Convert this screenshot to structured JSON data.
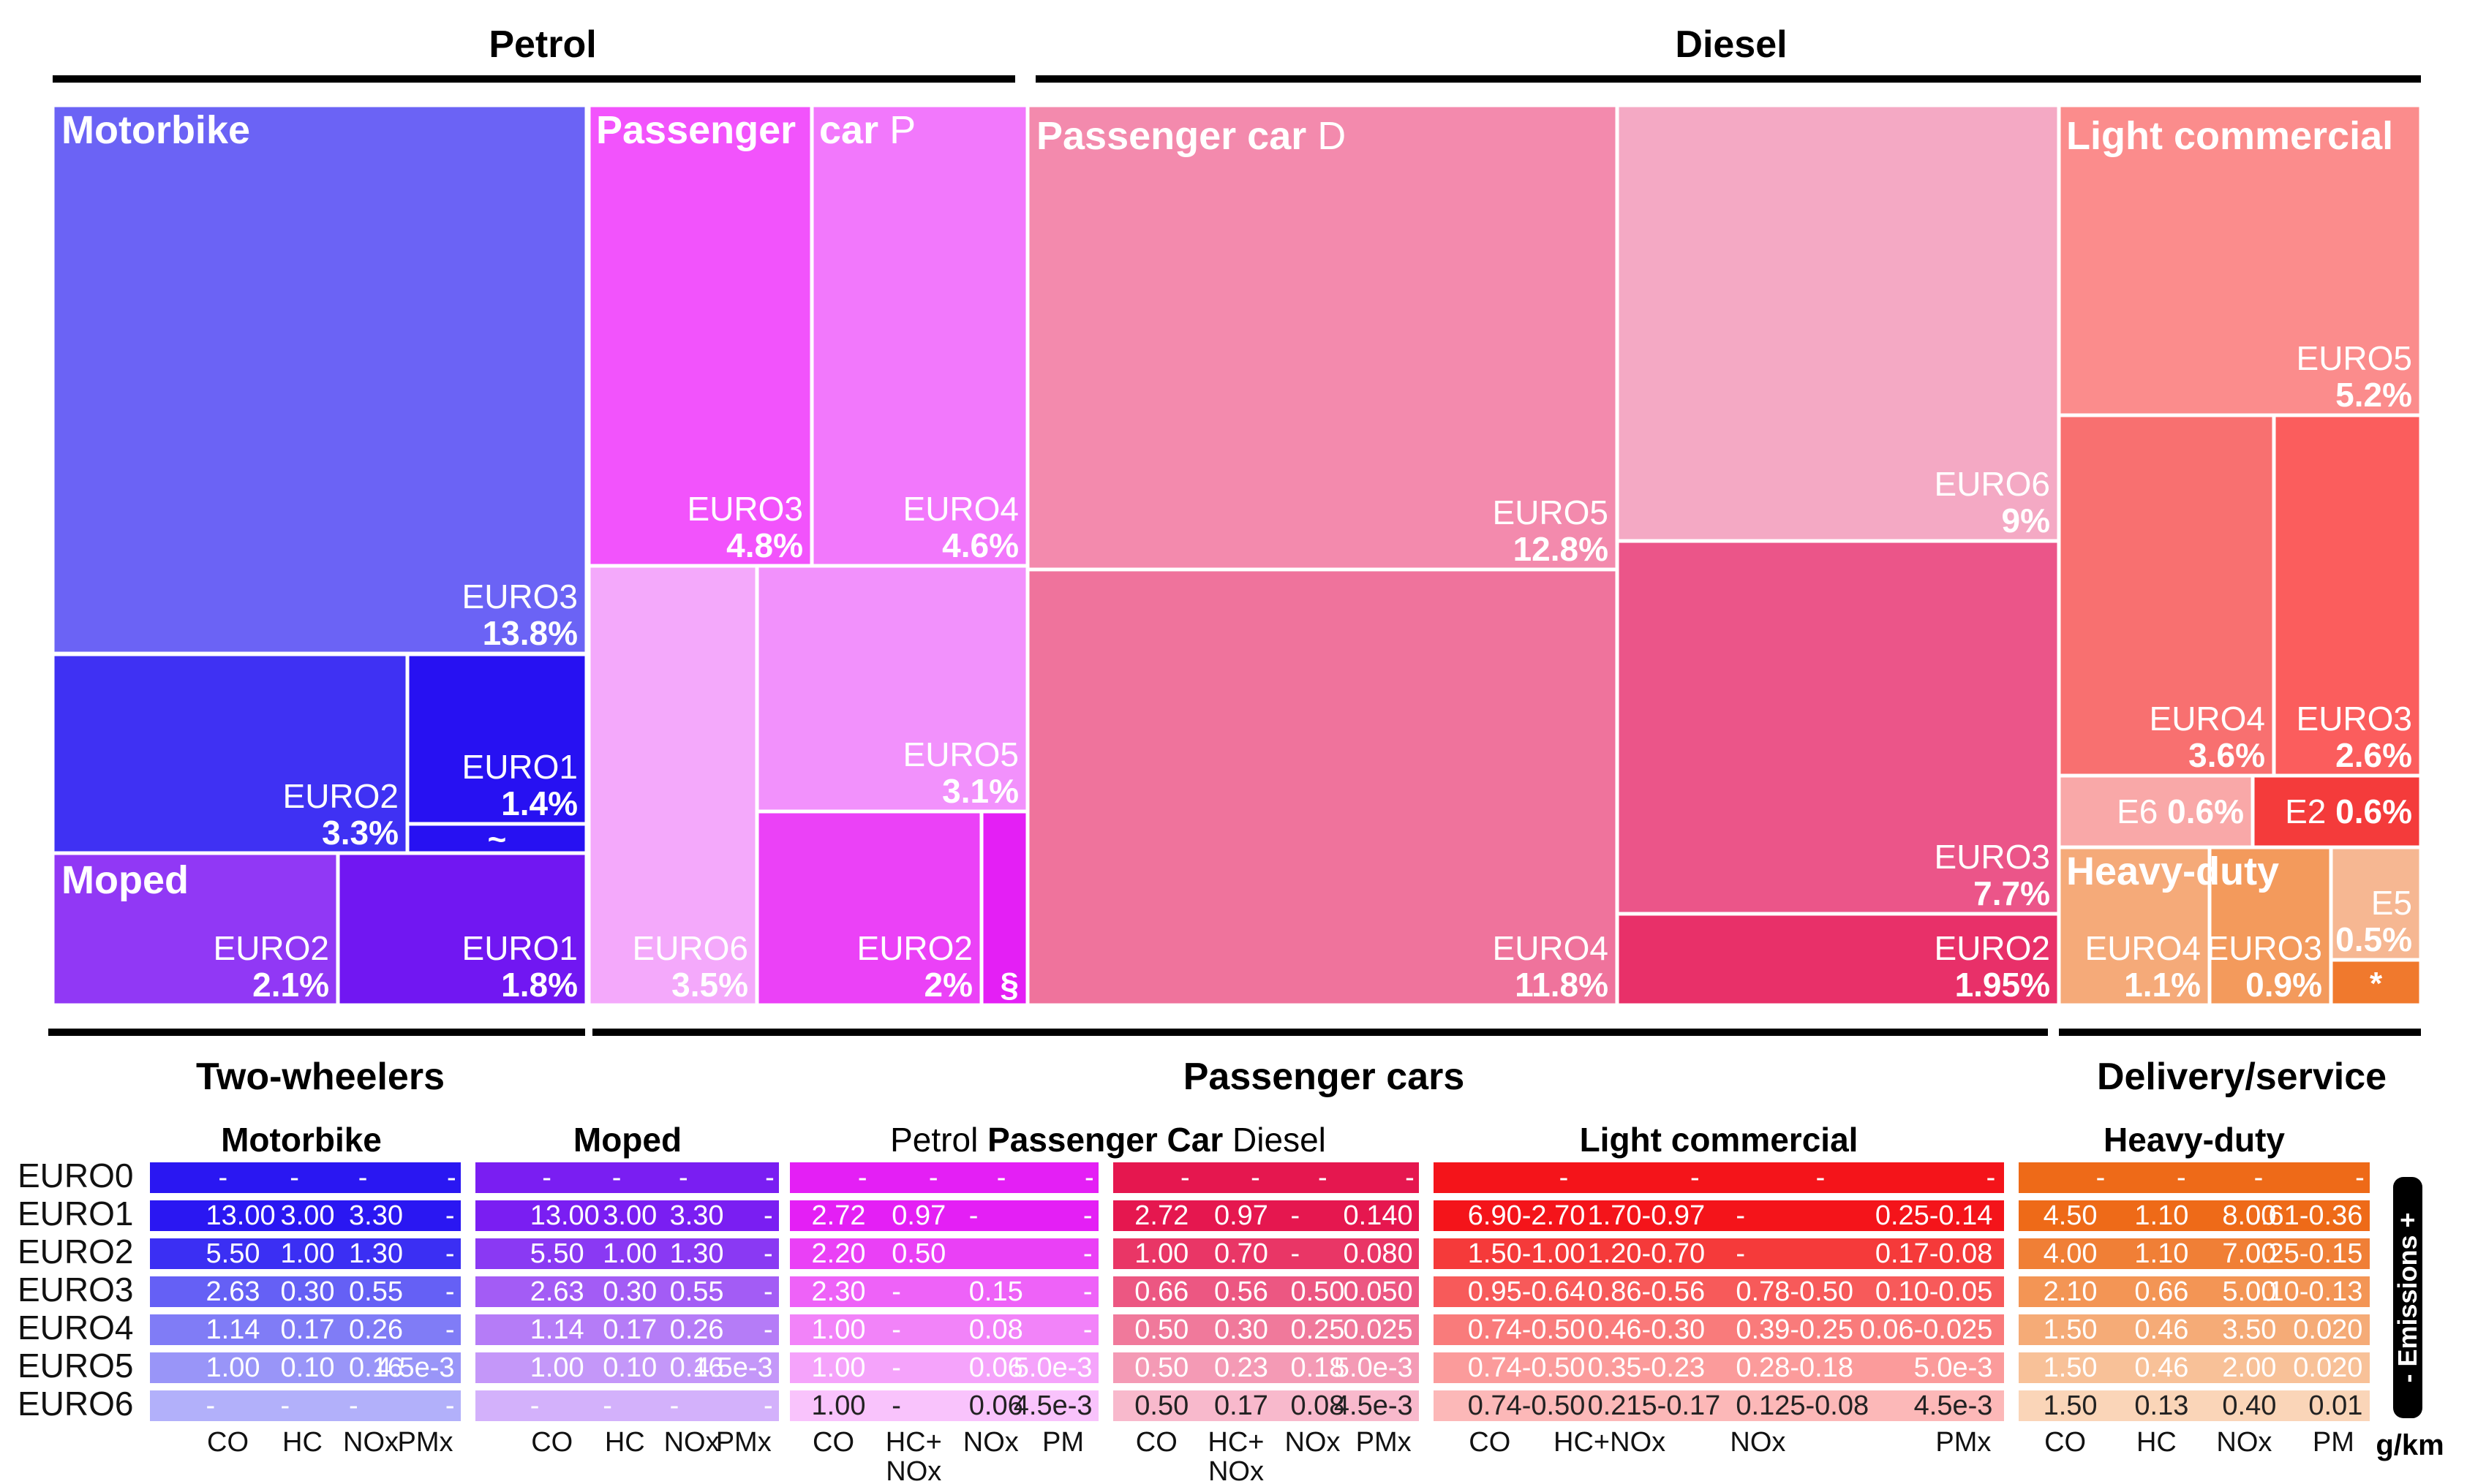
{
  "title": "",
  "chart_data": [
    {
      "type": "treemap",
      "title": "",
      "groups": [
        {
          "name": "Petrol"
        },
        {
          "name": "Diesel"
        }
      ],
      "categories": [
        {
          "name": "Two-wheelers"
        },
        {
          "name": "Passenger cars"
        },
        {
          "name": "Delivery/service"
        }
      ],
      "tiles": [
        {
          "vehicle": "Motorbike",
          "label": "EURO3",
          "value": "13.8%",
          "color": "#6b63f5"
        },
        {
          "vehicle": "Motorbike",
          "label": "EURO2",
          "value": "3.3%",
          "color": "#3f31f3"
        },
        {
          "vehicle": "Motorbike",
          "label": "EURO1",
          "value": "1.4%",
          "color": "#2711f2"
        },
        {
          "vehicle": "Motorbike",
          "label": "",
          "value": "~",
          "color": "#2711f2"
        },
        {
          "vehicle": "Moped",
          "label": "EURO2",
          "value": "2.1%",
          "color": "#9138f5"
        },
        {
          "vehicle": "Moped",
          "label": "EURO1",
          "value": "1.8%",
          "color": "#7117f2"
        },
        {
          "vehicle": "Passenger car P",
          "label": "EURO3",
          "value": "4.8%",
          "color": "#f253fc"
        },
        {
          "vehicle": "Passenger car P",
          "label": "EURO4",
          "value": "4.6%",
          "color": "#f278fc"
        },
        {
          "vehicle": "Passenger car P",
          "label": "EURO6",
          "value": "3.5%",
          "color": "#f4a9fb"
        },
        {
          "vehicle": "Passenger car P",
          "label": "EURO5",
          "value": "3.1%",
          "color": "#f291fc"
        },
        {
          "vehicle": "Passenger car P",
          "label": "EURO2",
          "value": "2%",
          "color": "#eb41f7"
        },
        {
          "vehicle": "Passenger car P",
          "label": "",
          "value": "§",
          "color": "#e41ff5"
        },
        {
          "vehicle": "Passenger car D",
          "label": "EURO5",
          "value": "12.8%",
          "color": "#f38aad"
        },
        {
          "vehicle": "Passenger car D",
          "label": "EURO4",
          "value": "11.8%",
          "color": "#ef739c"
        },
        {
          "vehicle": "Passenger car D",
          "label": "EURO6",
          "value": "9%",
          "color": "#f4a9c4"
        },
        {
          "vehicle": "Passenger car D",
          "label": "EURO3",
          "value": "7.7%",
          "color": "#eb5589"
        },
        {
          "vehicle": "Passenger car D",
          "label": "EURO2",
          "value": "1.95%",
          "color": "#e83069"
        },
        {
          "vehicle": "Light commercial",
          "label": "EURO5",
          "value": "5.2%",
          "color": "#fb8c8c"
        },
        {
          "vehicle": "Light commercial",
          "label": "EURO4",
          "value": "3.6%",
          "color": "#f87070"
        },
        {
          "vehicle": "Light commercial",
          "label": "EURO3",
          "value": "2.6%",
          "color": "#fb5d5d"
        },
        {
          "vehicle": "Light commercial",
          "label": "E6",
          "value": "0.6%",
          "color": "#f9a8a8"
        },
        {
          "vehicle": "Light commercial",
          "label": "E2",
          "value": "0.6%",
          "color": "#f43b3b"
        },
        {
          "vehicle": "Heavy-duty",
          "label": "EURO4",
          "value": "1.1%",
          "color": "#f5aa79"
        },
        {
          "vehicle": "Heavy-duty",
          "label": "EURO3",
          "value": "0.9%",
          "color": "#f39a5c"
        },
        {
          "vehicle": "Heavy-duty",
          "label": "E5",
          "value": "0.5%",
          "color": "#f6b792"
        },
        {
          "vehicle": "Heavy-duty",
          "label": "",
          "value": "*",
          "color": "#f0792d"
        }
      ],
      "vehicle_labels": [
        {
          "bold": "Motorbike",
          "light": ""
        },
        {
          "bold": "Moped",
          "light": ""
        },
        {
          "bold": "Passenger",
          "light": ""
        },
        {
          "bold": "car",
          "light": " P"
        },
        {
          "bold": "Passenger car",
          "light": " D"
        },
        {
          "bold": "Light commercial",
          "light": ""
        },
        {
          "bold": "Heavy-duty",
          "light": ""
        }
      ]
    },
    {
      "type": "table",
      "unit": "g/km",
      "legend": "- Emissions +",
      "rows": [
        "EURO0",
        "EURO1",
        "EURO2",
        "EURO3",
        "EURO4",
        "EURO5",
        "EURO6"
      ],
      "blocks": [
        {
          "title": "Motorbike",
          "title_prefix": "",
          "title_suffix": "",
          "columns": [
            "CO",
            "HC",
            "NOx",
            "PMx"
          ],
          "colors": [
            "#2a17f2",
            "#2a17f2",
            "#3b2ff3",
            "#6560f5",
            "#807cf6",
            "#9995f8",
            "#b2b0fa"
          ],
          "text_colors": [
            "#ffffff",
            "#ffffff",
            "#ffffff",
            "#ffffff",
            "#ffffff",
            "#ffffff",
            "#ffffff"
          ],
          "cells": [
            [
              "-",
              "-",
              "-",
              "-"
            ],
            [
              "13.00",
              "3.00",
              "3.30",
              "-"
            ],
            [
              "5.50",
              "1.00",
              "1.30",
              "-"
            ],
            [
              "2.63",
              "0.30",
              "0.55",
              "-"
            ],
            [
              "1.14",
              "0.17",
              "0.26",
              "-"
            ],
            [
              "1.00",
              "0.10",
              "0.16",
              "4.5e-3"
            ],
            [
              "-",
              "-",
              "-",
              "-"
            ]
          ]
        },
        {
          "title": "Moped",
          "title_prefix": "",
          "title_suffix": "",
          "columns": [
            "CO",
            "HC",
            "NOx",
            "PMx"
          ],
          "colors": [
            "#7a1ef2",
            "#7a1ef2",
            "#8a39f3",
            "#a35cf5",
            "#b57cf7",
            "#c497f9",
            "#d3b1fb"
          ],
          "text_colors": [
            "#ffffff",
            "#ffffff",
            "#ffffff",
            "#ffffff",
            "#ffffff",
            "#ffffff",
            "#ffffff"
          ],
          "cells": [
            [
              "-",
              "-",
              "-",
              "-"
            ],
            [
              "13.00",
              "3.00",
              "3.30",
              "-"
            ],
            [
              "5.50",
              "1.00",
              "1.30",
              "-"
            ],
            [
              "2.63",
              "0.30",
              "0.55",
              "-"
            ],
            [
              "1.14",
              "0.17",
              "0.26",
              "-"
            ],
            [
              "1.00",
              "0.10",
              "0.16",
              "4.5e-3"
            ],
            [
              "-",
              "-",
              "-",
              "-"
            ]
          ]
        },
        {
          "title": "Passenger Car",
          "title_prefix": "Petrol ",
          "title_suffix": "",
          "columns": [
            "CO",
            "HC+\nNOx",
            "NOx",
            "PM"
          ],
          "colors": [
            "#e41ff5",
            "#e41ff5",
            "#ea40f6",
            "#ee62f8",
            "#f283f9",
            "#f5a3fb",
            "#f9c3fc"
          ],
          "text_colors": [
            "#ffffff",
            "#ffffff",
            "#ffffff",
            "#ffffff",
            "#ffffff",
            "#ffffff",
            "#222222"
          ],
          "cells": [
            [
              "-",
              "-",
              "-",
              "-"
            ],
            [
              "2.72",
              "0.97",
              "-",
              "-"
            ],
            [
              "2.20",
              "0.50",
              "",
              "-"
            ],
            [
              "2.30",
              "-",
              "0.15",
              "-"
            ],
            [
              "1.00",
              "-",
              "0.08",
              "-"
            ],
            [
              "1.00",
              "-",
              "0.06",
              "5.0e-3"
            ],
            [
              "1.00",
              "-",
              "0.06",
              "4.5e-3"
            ]
          ]
        },
        {
          "title": "",
          "title_prefix": "",
          "title_suffix": "Diesel",
          "columns": [
            "CO",
            "HC+\nNOx",
            "NOx",
            "PMx"
          ],
          "colors": [
            "#e5174f",
            "#e5174f",
            "#e93666",
            "#ec5782",
            "#f0799b",
            "#f49ab5",
            "#f8b9cc"
          ],
          "text_colors": [
            "#ffffff",
            "#ffffff",
            "#ffffff",
            "#ffffff",
            "#ffffff",
            "#ffffff",
            "#222222"
          ],
          "cells": [
            [
              "-",
              "-",
              "-",
              "-"
            ],
            [
              "2.72",
              "0.97",
              "-",
              "0.140"
            ],
            [
              "1.00",
              "0.70",
              "-",
              "0.080"
            ],
            [
              "0.66",
              "0.56",
              "0.50",
              "0.050"
            ],
            [
              "0.50",
              "0.30",
              "0.25",
              "0.025"
            ],
            [
              "0.50",
              "0.23",
              "0.18",
              "5.0e-3"
            ],
            [
              "0.50",
              "0.17",
              "0.08",
              "4.5e-3"
            ]
          ]
        },
        {
          "title": "Light commercial",
          "title_prefix": "",
          "title_suffix": "",
          "columns": [
            "CO",
            "HC+NOx",
            "NOx",
            "PMx"
          ],
          "colors": [
            "#f4141a",
            "#f4141a",
            "#f53a3a",
            "#f75a5a",
            "#f97b7b",
            "#fb9b9b",
            "#fcb8b8"
          ],
          "text_colors": [
            "#ffffff",
            "#ffffff",
            "#ffffff",
            "#ffffff",
            "#ffffff",
            "#ffffff",
            "#222222"
          ],
          "cells": [
            [
              "-",
              "-",
              "-",
              "-"
            ],
            [
              "6.90-2.70",
              "1.70-0.97",
              "-",
              "0.25-0.14"
            ],
            [
              "1.50-1.00",
              "1.20-0.70",
              "-",
              "0.17-0.08"
            ],
            [
              "0.95-0.64",
              "0.86-0.56",
              "0.78-0.50",
              "0.10-0.05"
            ],
            [
              "0.74-0.50",
              "0.46-0.30",
              "0.39-0.25",
              "0.06-0.025"
            ],
            [
              "0.74-0.50",
              "0.35-0.23",
              "0.28-0.18",
              "5.0e-3"
            ],
            [
              "0.74-0.50",
              "0.215-0.17",
              "0.125-0.08",
              "4.5e-3"
            ]
          ]
        },
        {
          "title": "Heavy-duty",
          "title_prefix": "",
          "title_suffix": "",
          "columns": [
            "CO",
            "HC",
            "NOx",
            "PM"
          ],
          "colors": [
            "#ee6a18",
            "#ee6a18",
            "#f07f36",
            "#f39555",
            "#f5ab77",
            "#f8c198",
            "#fad5b8"
          ],
          "text_colors": [
            "#ffffff",
            "#ffffff",
            "#ffffff",
            "#ffffff",
            "#ffffff",
            "#ffffff",
            "#222222"
          ],
          "cells": [
            [
              "-",
              "-",
              "-",
              "-"
            ],
            [
              "4.50",
              "1.10",
              "8.00",
              "0.61-0.36"
            ],
            [
              "4.00",
              "1.10",
              "7.00",
              "0.25-0.15"
            ],
            [
              "2.10",
              "0.66",
              "5.00",
              "0.10-0.13"
            ],
            [
              "1.50",
              "0.46",
              "3.50",
              "0.020"
            ],
            [
              "1.50",
              "0.46",
              "2.00",
              "0.020"
            ],
            [
              "1.50",
              "0.13",
              "0.40",
              "0.01"
            ]
          ]
        }
      ]
    }
  ]
}
